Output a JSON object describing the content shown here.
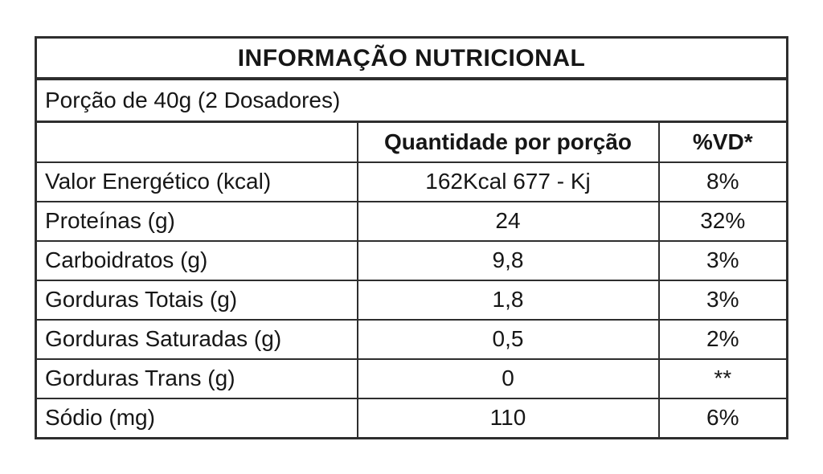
{
  "table": {
    "title": "INFORMAÇÃO NUTRICIONAL",
    "serving": "Porção de 40g (2 Dosadores)",
    "columns": {
      "quantity": "Quantidade por porção",
      "dv": "%VD*"
    },
    "rows": [
      {
        "label": "Valor Energético (kcal)",
        "quantity": "162Kcal 677 - Kj",
        "dv": "8%"
      },
      {
        "label": "Proteínas (g)",
        "quantity": "24",
        "dv": "32%"
      },
      {
        "label": "Carboidratos (g)",
        "quantity": "9,8",
        "dv": "3%"
      },
      {
        "label": "Gorduras Totais (g)",
        "quantity": "1,8",
        "dv": "3%"
      },
      {
        "label": "Gorduras Saturadas (g)",
        "quantity": "0,5",
        "dv": "2%"
      },
      {
        "label": "Gorduras Trans (g)",
        "quantity": "0",
        "dv": "**"
      },
      {
        "label": "Sódio (mg)",
        "quantity": "110",
        "dv": "6%"
      }
    ],
    "colors": {
      "border": "#2e2e2e",
      "text": "#161616",
      "background": "#ffffff"
    }
  }
}
